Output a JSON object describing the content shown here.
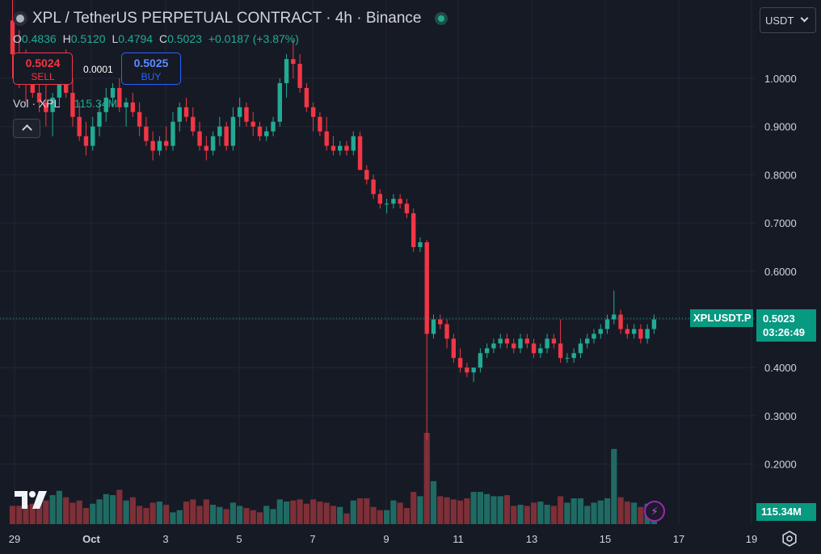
{
  "header": {
    "title": "XPL / TetherUS PERPETUAL CONTRACT · 4h · Binance",
    "ohlc": {
      "o_key": "O",
      "o": "0.4836",
      "h_key": "H",
      "h": "0.5120",
      "l_key": "L",
      "l": "0.4794",
      "c_key": "C",
      "c": "0.5023",
      "change": "+0.0187 (+3.87%)"
    },
    "sell_price": "0.5024",
    "sell_label": "SELL",
    "spread": "0.0001",
    "buy_price": "0.5025",
    "buy_label": "BUY",
    "volume_label": "Vol · XPL",
    "volume_value": "115.34M",
    "currency": "USDT"
  },
  "tags": {
    "symbol": "XPLUSDT.P",
    "price": "0.5023",
    "countdown": "03:26:49",
    "volume": "115.34M"
  },
  "icons": {
    "collapse": "chevron-up-icon",
    "flash": "lightning-icon",
    "settings": "gear-icon",
    "logo": "tradingview-logo"
  },
  "colors": {
    "up": "#22ab94",
    "down": "#f23645",
    "vol_up": "#1f6b63",
    "vol_down": "#7e2f37",
    "background": "#161a25",
    "price_line": "#22ab94"
  },
  "chart_data": {
    "type": "candlestick",
    "timeframe": "4h",
    "ylim": [
      0.15,
      1.14
    ],
    "y_ticks": [
      "1.0000",
      "0.9000",
      "0.8000",
      "0.7000",
      "0.6000",
      "0.5000",
      "0.4000",
      "0.3000",
      "0.2000"
    ],
    "x_ticks": [
      "29",
      "Oct",
      "3",
      "5",
      "7",
      "9",
      "11",
      "13",
      "15",
      "17",
      "19"
    ],
    "last_price": 0.5023,
    "candles": [
      [
        1.12,
        1.22,
        1.0,
        1.05
      ],
      [
        1.05,
        1.1,
        0.98,
        1.02
      ],
      [
        1.02,
        1.06,
        0.95,
        1.0
      ],
      [
        1.0,
        1.04,
        0.96,
        0.97
      ],
      [
        0.97,
        1.0,
        0.93,
        0.95
      ],
      [
        0.95,
        0.99,
        0.9,
        0.93
      ],
      [
        0.93,
        0.97,
        0.88,
        0.96
      ],
      [
        0.96,
        1.05,
        0.94,
        1.02
      ],
      [
        1.02,
        1.06,
        0.96,
        0.97
      ],
      [
        0.97,
        1.0,
        0.9,
        0.92
      ],
      [
        0.92,
        0.95,
        0.87,
        0.88
      ],
      [
        0.88,
        0.91,
        0.84,
        0.86
      ],
      [
        0.86,
        0.92,
        0.85,
        0.9
      ],
      [
        0.9,
        0.95,
        0.88,
        0.93
      ],
      [
        0.93,
        0.98,
        0.91,
        0.96
      ],
      [
        0.96,
        0.99,
        0.94,
        0.98
      ],
      [
        0.98,
        1.0,
        0.93,
        0.94
      ],
      [
        0.94,
        0.96,
        0.9,
        0.95
      ],
      [
        0.95,
        0.97,
        0.92,
        0.93
      ],
      [
        0.93,
        0.95,
        0.88,
        0.9
      ],
      [
        0.9,
        0.92,
        0.86,
        0.87
      ],
      [
        0.87,
        0.89,
        0.83,
        0.85
      ],
      [
        0.85,
        0.88,
        0.84,
        0.87
      ],
      [
        0.87,
        0.9,
        0.85,
        0.86
      ],
      [
        0.86,
        0.93,
        0.85,
        0.91
      ],
      [
        0.91,
        0.95,
        0.89,
        0.94
      ],
      [
        0.94,
        0.96,
        0.91,
        0.92
      ],
      [
        0.92,
        0.94,
        0.88,
        0.89
      ],
      [
        0.89,
        0.91,
        0.85,
        0.86
      ],
      [
        0.86,
        0.88,
        0.83,
        0.85
      ],
      [
        0.85,
        0.89,
        0.84,
        0.88
      ],
      [
        0.88,
        0.92,
        0.86,
        0.9
      ],
      [
        0.9,
        0.91,
        0.85,
        0.86
      ],
      [
        0.86,
        0.94,
        0.85,
        0.92
      ],
      [
        0.92,
        0.96,
        0.9,
        0.94
      ],
      [
        0.94,
        0.95,
        0.9,
        0.91
      ],
      [
        0.91,
        0.93,
        0.88,
        0.9
      ],
      [
        0.9,
        0.91,
        0.87,
        0.88
      ],
      [
        0.88,
        0.9,
        0.87,
        0.89
      ],
      [
        0.89,
        0.92,
        0.88,
        0.91
      ],
      [
        0.91,
        1.0,
        0.9,
        0.99
      ],
      [
        0.99,
        1.05,
        0.96,
        1.04
      ],
      [
        1.04,
        1.08,
        1.0,
        1.03
      ],
      [
        1.03,
        1.05,
        0.97,
        0.98
      ],
      [
        0.98,
        0.99,
        0.93,
        0.94
      ],
      [
        0.94,
        0.95,
        0.89,
        0.92
      ],
      [
        0.92,
        0.93,
        0.88,
        0.89
      ],
      [
        0.89,
        0.92,
        0.85,
        0.86
      ],
      [
        0.86,
        0.88,
        0.84,
        0.85
      ],
      [
        0.85,
        0.87,
        0.84,
        0.86
      ],
      [
        0.86,
        0.87,
        0.84,
        0.85
      ],
      [
        0.85,
        0.89,
        0.84,
        0.88
      ],
      [
        0.88,
        0.89,
        0.81,
        0.81
      ],
      [
        0.81,
        0.82,
        0.78,
        0.79
      ],
      [
        0.79,
        0.8,
        0.75,
        0.76
      ],
      [
        0.76,
        0.77,
        0.73,
        0.74
      ],
      [
        0.74,
        0.75,
        0.72,
        0.74
      ],
      [
        0.74,
        0.76,
        0.73,
        0.75
      ],
      [
        0.75,
        0.76,
        0.73,
        0.74
      ],
      [
        0.74,
        0.75,
        0.71,
        0.72
      ],
      [
        0.72,
        0.73,
        0.64,
        0.65
      ],
      [
        0.65,
        0.67,
        0.64,
        0.66
      ],
      [
        0.66,
        0.665,
        0.25,
        0.47
      ],
      [
        0.47,
        0.51,
        0.46,
        0.5
      ],
      [
        0.5,
        0.51,
        0.48,
        0.49
      ],
      [
        0.49,
        0.5,
        0.44,
        0.46
      ],
      [
        0.46,
        0.47,
        0.41,
        0.42
      ],
      [
        0.42,
        0.44,
        0.39,
        0.4
      ],
      [
        0.4,
        0.41,
        0.38,
        0.39
      ],
      [
        0.39,
        0.4,
        0.37,
        0.4
      ],
      [
        0.4,
        0.44,
        0.39,
        0.43
      ],
      [
        0.43,
        0.45,
        0.42,
        0.44
      ],
      [
        0.44,
        0.46,
        0.43,
        0.45
      ],
      [
        0.45,
        0.47,
        0.44,
        0.46
      ],
      [
        0.46,
        0.47,
        0.44,
        0.45
      ],
      [
        0.45,
        0.46,
        0.43,
        0.44
      ],
      [
        0.44,
        0.47,
        0.43,
        0.46
      ],
      [
        0.46,
        0.47,
        0.44,
        0.45
      ],
      [
        0.45,
        0.46,
        0.42,
        0.43
      ],
      [
        0.43,
        0.45,
        0.42,
        0.44
      ],
      [
        0.44,
        0.47,
        0.43,
        0.46
      ],
      [
        0.46,
        0.47,
        0.44,
        0.45
      ],
      [
        0.45,
        0.5,
        0.41,
        0.42
      ],
      [
        0.42,
        0.43,
        0.41,
        0.42
      ],
      [
        0.42,
        0.44,
        0.41,
        0.43
      ],
      [
        0.43,
        0.46,
        0.42,
        0.45
      ],
      [
        0.45,
        0.47,
        0.44,
        0.46
      ],
      [
        0.46,
        0.48,
        0.45,
        0.47
      ],
      [
        0.47,
        0.49,
        0.46,
        0.48
      ],
      [
        0.48,
        0.51,
        0.47,
        0.5
      ],
      [
        0.5,
        0.56,
        0.49,
        0.51
      ],
      [
        0.51,
        0.52,
        0.47,
        0.48
      ],
      [
        0.48,
        0.49,
        0.46,
        0.47
      ],
      [
        0.47,
        0.49,
        0.46,
        0.48
      ],
      [
        0.48,
        0.49,
        0.45,
        0.46
      ],
      [
        0.46,
        0.49,
        0.45,
        0.48
      ],
      [
        0.48,
        0.51,
        0.47,
        0.5
      ]
    ],
    "volumes": [
      17,
      17,
      18,
      19,
      20,
      22,
      27,
      31,
      25,
      20,
      22,
      15,
      19,
      23,
      28,
      27,
      32,
      22,
      25,
      17,
      15,
      20,
      21,
      18,
      11,
      13,
      21,
      23,
      17,
      23,
      18,
      16,
      14,
      20,
      17,
      15,
      13,
      11,
      17,
      14,
      23,
      21,
      22,
      23,
      19,
      23,
      21,
      20,
      17,
      16,
      10,
      22,
      24,
      24,
      16,
      13,
      13,
      22,
      20,
      15,
      30,
      26,
      85,
      40,
      26,
      25,
      23,
      22,
      24,
      30,
      30,
      28,
      26,
      26,
      27,
      17,
      18,
      17,
      20,
      21,
      18,
      17,
      26,
      20,
      24,
      24,
      17,
      20,
      22,
      24,
      70,
      25,
      21,
      20,
      16,
      19,
      13
    ]
  }
}
